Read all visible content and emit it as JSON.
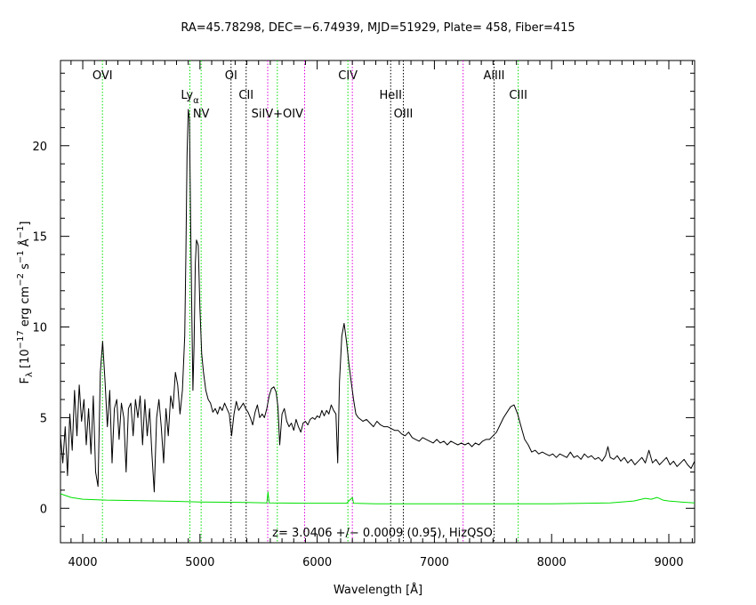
{
  "chart_data": {
    "type": "line",
    "title": "RA=45.78298, DEC=−6.74939, MJD=51929, Plate= 458, Fiber=415",
    "xlabel": "Wavelength [Å]",
    "ylabel": {
      "main": "F",
      "sub": "λ",
      "units_a": " [10",
      "exp1": "−17",
      "units_b": " erg cm",
      "exp2": "−2",
      "units_c": " s",
      "exp3": "−1",
      "units_d": " Å",
      "exp4": "−1",
      "units_e": "]"
    },
    "annotation": "z= 3.0406 +/− 0.0009 (0.95), HizQSO",
    "xlim": [
      3810,
      9220
    ],
    "ylim": [
      -1.9,
      24.7
    ],
    "xticks": [
      "4000",
      "5000",
      "6000",
      "7000",
      "8000",
      "9000"
    ],
    "yticks": [
      "0",
      "5",
      "10",
      "15",
      "20"
    ],
    "series": [
      {
        "color": "#000000",
        "points": [
          [
            3810,
            4.0
          ],
          [
            3830,
            2.5
          ],
          [
            3850,
            4.5
          ],
          [
            3870,
            1.8
          ],
          [
            3890,
            5.2
          ],
          [
            3910,
            3.2
          ],
          [
            3930,
            6.5
          ],
          [
            3950,
            4.0
          ],
          [
            3970,
            6.8
          ],
          [
            3990,
            4.8
          ],
          [
            4010,
            6.0
          ],
          [
            4030,
            3.5
          ],
          [
            4050,
            5.5
          ],
          [
            4070,
            3.0
          ],
          [
            4090,
            6.2
          ],
          [
            4110,
            2.0
          ],
          [
            4130,
            1.2
          ],
          [
            4150,
            7.5
          ],
          [
            4170,
            9.2
          ],
          [
            4190,
            7.0
          ],
          [
            4210,
            4.5
          ],
          [
            4230,
            6.5
          ],
          [
            4250,
            2.5
          ],
          [
            4270,
            5.5
          ],
          [
            4290,
            6.0
          ],
          [
            4310,
            3.8
          ],
          [
            4330,
            5.8
          ],
          [
            4350,
            5.0
          ],
          [
            4370,
            2.0
          ],
          [
            4390,
            5.5
          ],
          [
            4410,
            5.8
          ],
          [
            4430,
            4.0
          ],
          [
            4450,
            6.0
          ],
          [
            4470,
            5.0
          ],
          [
            4490,
            6.2
          ],
          [
            4510,
            3.5
          ],
          [
            4530,
            6.0
          ],
          [
            4550,
            4.0
          ],
          [
            4570,
            5.5
          ],
          [
            4590,
            3.0
          ],
          [
            4610,
            0.9
          ],
          [
            4630,
            5.0
          ],
          [
            4650,
            6.0
          ],
          [
            4670,
            4.5
          ],
          [
            4690,
            2.5
          ],
          [
            4710,
            5.5
          ],
          [
            4730,
            4.0
          ],
          [
            4750,
            6.2
          ],
          [
            4770,
            5.5
          ],
          [
            4790,
            7.5
          ],
          [
            4810,
            6.8
          ],
          [
            4830,
            5.2
          ],
          [
            4850,
            6.5
          ],
          [
            4870,
            9.5
          ],
          [
            4880,
            14.0
          ],
          [
            4890,
            19.5
          ],
          [
            4900,
            22.0
          ],
          [
            4910,
            21.5
          ],
          [
            4920,
            16.0
          ],
          [
            4930,
            11.0
          ],
          [
            4940,
            6.5
          ],
          [
            4950,
            9.0
          ],
          [
            4960,
            13.5
          ],
          [
            4970,
            14.8
          ],
          [
            4985,
            14.5
          ],
          [
            5000,
            11.0
          ],
          [
            5015,
            8.5
          ],
          [
            5030,
            7.5
          ],
          [
            5050,
            6.5
          ],
          [
            5070,
            6.0
          ],
          [
            5090,
            5.8
          ],
          [
            5110,
            5.3
          ],
          [
            5130,
            5.5
          ],
          [
            5150,
            5.2
          ],
          [
            5170,
            5.6
          ],
          [
            5190,
            5.4
          ],
          [
            5210,
            5.8
          ],
          [
            5230,
            5.5
          ],
          [
            5250,
            5.2
          ],
          [
            5270,
            4.0
          ],
          [
            5290,
            5.2
          ],
          [
            5310,
            5.9
          ],
          [
            5330,
            5.4
          ],
          [
            5350,
            5.6
          ],
          [
            5370,
            5.8
          ],
          [
            5390,
            5.5
          ],
          [
            5410,
            5.3
          ],
          [
            5430,
            5.0
          ],
          [
            5450,
            4.6
          ],
          [
            5470,
            5.3
          ],
          [
            5490,
            5.7
          ],
          [
            5510,
            5.0
          ],
          [
            5530,
            5.2
          ],
          [
            5550,
            5.0
          ],
          [
            5570,
            5.5
          ],
          [
            5590,
            6.2
          ],
          [
            5610,
            6.6
          ],
          [
            5630,
            6.7
          ],
          [
            5650,
            6.4
          ],
          [
            5665,
            5.6
          ],
          [
            5680,
            3.5
          ],
          [
            5700,
            5.2
          ],
          [
            5720,
            5.5
          ],
          [
            5740,
            4.8
          ],
          [
            5760,
            4.5
          ],
          [
            5780,
            4.7
          ],
          [
            5800,
            4.3
          ],
          [
            5820,
            4.9
          ],
          [
            5840,
            4.5
          ],
          [
            5860,
            4.2
          ],
          [
            5880,
            4.7
          ],
          [
            5900,
            4.8
          ],
          [
            5920,
            4.6
          ],
          [
            5940,
            4.9
          ],
          [
            5960,
            5.0
          ],
          [
            5980,
            4.9
          ],
          [
            6000,
            5.1
          ],
          [
            6020,
            5.0
          ],
          [
            6040,
            5.4
          ],
          [
            6060,
            5.1
          ],
          [
            6080,
            5.4
          ],
          [
            6100,
            5.2
          ],
          [
            6120,
            5.7
          ],
          [
            6140,
            5.4
          ],
          [
            6160,
            5.2
          ],
          [
            6175,
            2.5
          ],
          [
            6190,
            7.0
          ],
          [
            6210,
            9.5
          ],
          [
            6230,
            10.2
          ],
          [
            6250,
            9.2
          ],
          [
            6270,
            8.0
          ],
          [
            6290,
            7.0
          ],
          [
            6310,
            6.0
          ],
          [
            6330,
            5.2
          ],
          [
            6350,
            5.0
          ],
          [
            6370,
            4.9
          ],
          [
            6390,
            4.8
          ],
          [
            6420,
            4.9
          ],
          [
            6450,
            4.7
          ],
          [
            6480,
            4.5
          ],
          [
            6510,
            4.8
          ],
          [
            6540,
            4.6
          ],
          [
            6570,
            4.5
          ],
          [
            6600,
            4.5
          ],
          [
            6630,
            4.4
          ],
          [
            6660,
            4.3
          ],
          [
            6690,
            4.3
          ],
          [
            6720,
            4.1
          ],
          [
            6750,
            4.0
          ],
          [
            6780,
            4.2
          ],
          [
            6810,
            3.9
          ],
          [
            6840,
            3.8
          ],
          [
            6870,
            3.7
          ],
          [
            6900,
            3.9
          ],
          [
            6930,
            3.8
          ],
          [
            6960,
            3.7
          ],
          [
            6990,
            3.6
          ],
          [
            7020,
            3.8
          ],
          [
            7050,
            3.6
          ],
          [
            7080,
            3.7
          ],
          [
            7110,
            3.5
          ],
          [
            7140,
            3.7
          ],
          [
            7170,
            3.6
          ],
          [
            7200,
            3.5
          ],
          [
            7230,
            3.6
          ],
          [
            7260,
            3.5
          ],
          [
            7290,
            3.6
          ],
          [
            7320,
            3.4
          ],
          [
            7350,
            3.6
          ],
          [
            7380,
            3.5
          ],
          [
            7410,
            3.7
          ],
          [
            7440,
            3.8
          ],
          [
            7470,
            3.8
          ],
          [
            7500,
            4.0
          ],
          [
            7530,
            4.2
          ],
          [
            7560,
            4.6
          ],
          [
            7590,
            5.0
          ],
          [
            7620,
            5.3
          ],
          [
            7650,
            5.6
          ],
          [
            7680,
            5.7
          ],
          [
            7710,
            5.2
          ],
          [
            7740,
            4.5
          ],
          [
            7770,
            3.8
          ],
          [
            7800,
            3.5
          ],
          [
            7830,
            3.1
          ],
          [
            7860,
            3.2
          ],
          [
            7890,
            3.0
          ],
          [
            7920,
            3.1
          ],
          [
            7950,
            3.0
          ],
          [
            7980,
            2.9
          ],
          [
            8010,
            3.0
          ],
          [
            8040,
            2.8
          ],
          [
            8070,
            3.0
          ],
          [
            8100,
            2.9
          ],
          [
            8130,
            2.8
          ],
          [
            8160,
            3.1
          ],
          [
            8190,
            2.8
          ],
          [
            8220,
            2.9
          ],
          [
            8250,
            2.7
          ],
          [
            8280,
            3.0
          ],
          [
            8310,
            2.8
          ],
          [
            8340,
            2.9
          ],
          [
            8370,
            2.7
          ],
          [
            8400,
            2.8
          ],
          [
            8430,
            2.6
          ],
          [
            8460,
            2.9
          ],
          [
            8480,
            3.4
          ],
          [
            8500,
            2.8
          ],
          [
            8530,
            2.7
          ],
          [
            8560,
            2.9
          ],
          [
            8590,
            2.6
          ],
          [
            8620,
            2.8
          ],
          [
            8650,
            2.5
          ],
          [
            8680,
            2.7
          ],
          [
            8710,
            2.4
          ],
          [
            8740,
            2.6
          ],
          [
            8770,
            2.8
          ],
          [
            8800,
            2.5
          ],
          [
            8830,
            3.2
          ],
          [
            8860,
            2.5
          ],
          [
            8890,
            2.7
          ],
          [
            8920,
            2.4
          ],
          [
            8950,
            2.6
          ],
          [
            8980,
            2.8
          ],
          [
            9010,
            2.4
          ],
          [
            9040,
            2.6
          ],
          [
            9070,
            2.3
          ],
          [
            9100,
            2.5
          ],
          [
            9130,
            2.7
          ],
          [
            9160,
            2.4
          ],
          [
            9190,
            2.2
          ],
          [
            9220,
            2.6
          ]
        ]
      },
      {
        "color": "#00e000",
        "points": [
          [
            3810,
            0.8
          ],
          [
            3900,
            0.6
          ],
          [
            4000,
            0.5
          ],
          [
            4200,
            0.45
          ],
          [
            4500,
            0.42
          ],
          [
            4800,
            0.38
          ],
          [
            5000,
            0.35
          ],
          [
            5400,
            0.32
          ],
          [
            5570,
            0.3
          ],
          [
            5580,
            0.9
          ],
          [
            5590,
            0.3
          ],
          [
            5900,
            0.28
          ],
          [
            6250,
            0.28
          ],
          [
            6300,
            0.6
          ],
          [
            6310,
            0.28
          ],
          [
            6500,
            0.25
          ],
          [
            7000,
            0.25
          ],
          [
            7500,
            0.25
          ],
          [
            8000,
            0.25
          ],
          [
            8500,
            0.3
          ],
          [
            8700,
            0.4
          ],
          [
            8800,
            0.55
          ],
          [
            8850,
            0.5
          ],
          [
            8900,
            0.6
          ],
          [
            8950,
            0.45
          ],
          [
            9000,
            0.4
          ],
          [
            9100,
            0.35
          ],
          [
            9220,
            0.3
          ]
        ]
      }
    ],
    "line_markers": [
      {
        "label": "OVI",
        "x": 4168,
        "color": "#00e000",
        "row": 0
      },
      {
        "label": "Ly",
        "x": 4914,
        "color": "#00e000",
        "row": 1,
        "sub": "α"
      },
      {
        "label": "NV",
        "x": 5010,
        "color": "#00e000",
        "row": 2
      },
      {
        "label": "OI",
        "x": 5265,
        "color": "#000000",
        "row": 0
      },
      {
        "label": "CII",
        "x": 5394,
        "color": "#000000",
        "row": 1
      },
      {
        "label": "",
        "x": 5578,
        "color": "#e000e0",
        "row": 0
      },
      {
        "label": "SiIV+OIV",
        "x": 5660,
        "color": "#00e000",
        "row": 2
      },
      {
        "label": "",
        "x": 5893,
        "color": "#e000e0",
        "row": 0
      },
      {
        "label": "CIV",
        "x": 6262,
        "color": "#00e000",
        "row": 0
      },
      {
        "label": "",
        "x": 6300,
        "color": "#e000e0",
        "row": 0
      },
      {
        "label": "HeII",
        "x": 6627,
        "color": "#000000",
        "row": 1
      },
      {
        "label": "OIII",
        "x": 6735,
        "color": "#000000",
        "row": 2
      },
      {
        "label": "",
        "x": 7245,
        "color": "#e000e0",
        "row": 0
      },
      {
        "label": "AlIII",
        "x": 7509,
        "color": "#000000",
        "row": 0
      },
      {
        "label": "CIII",
        "x": 7715,
        "color": "#00e000",
        "row": 1
      }
    ]
  }
}
